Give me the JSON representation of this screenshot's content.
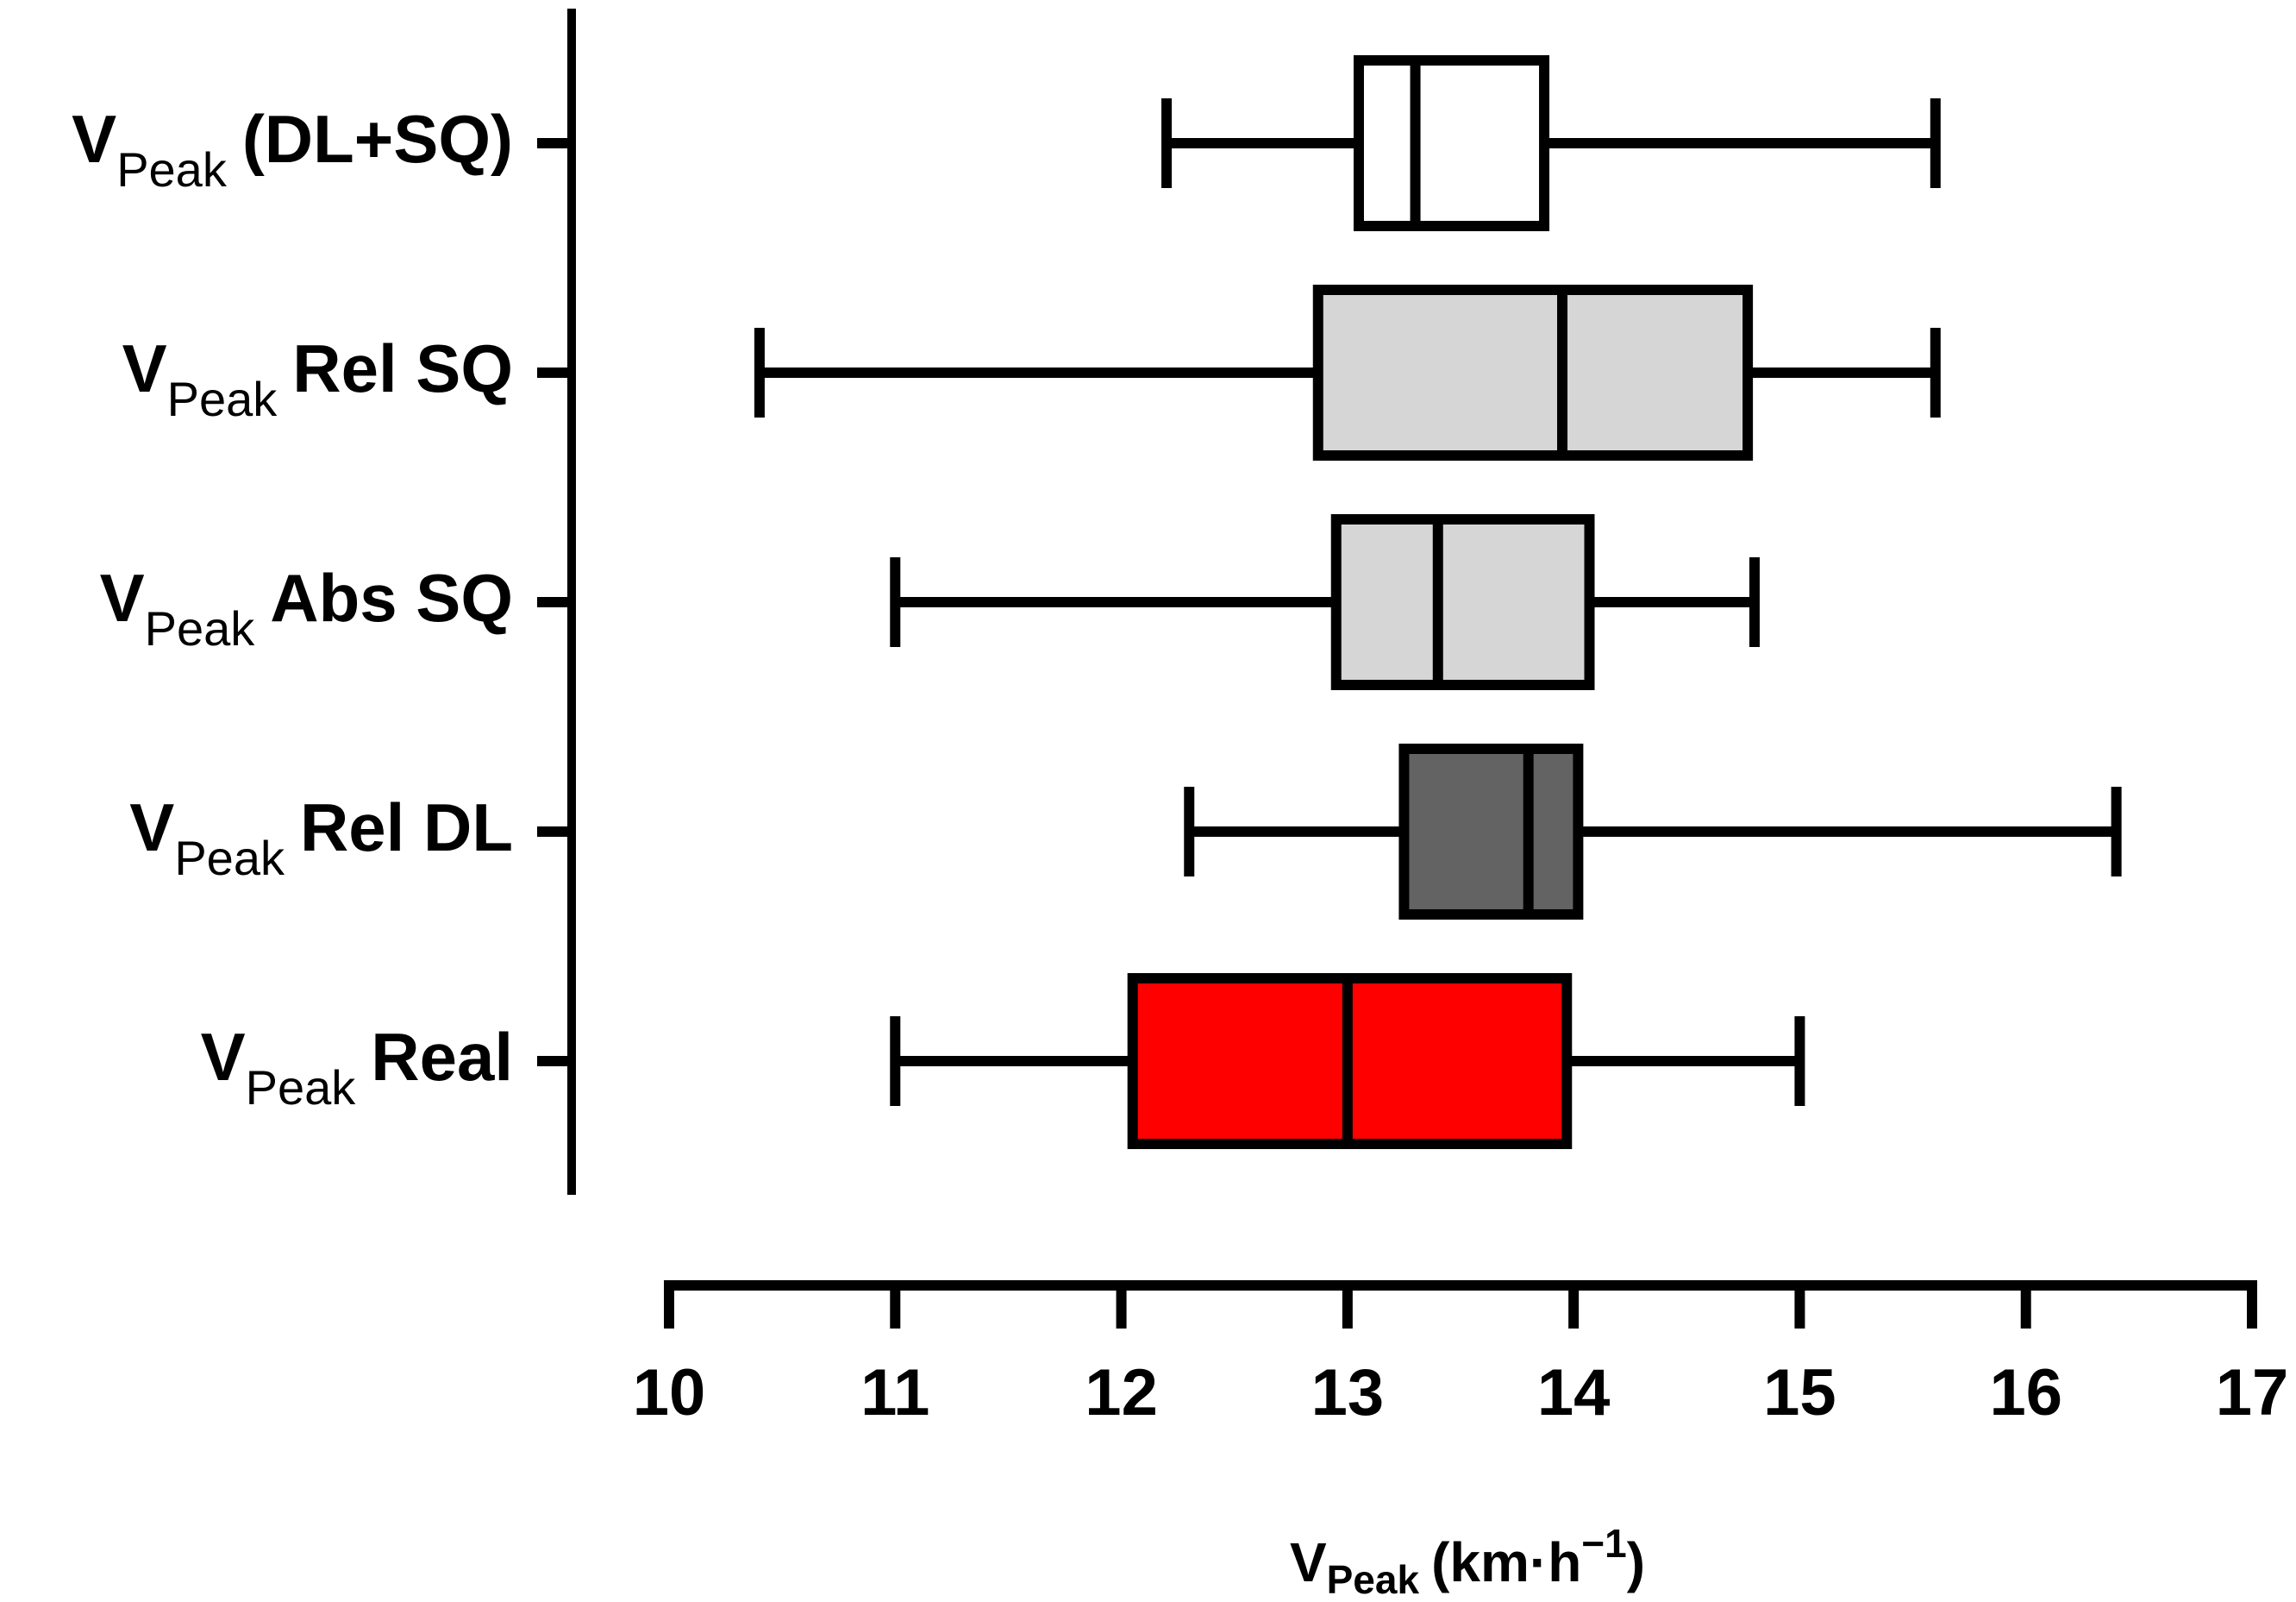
{
  "chart_data": {
    "type": "boxplot",
    "orientation": "horizontal",
    "title": "",
    "xlabel": {
      "main": "V",
      "sub": "Peak",
      "unit": "(km·h",
      "exp": "−1",
      "close": ")"
    },
    "xlim": [
      10,
      17
    ],
    "xticks": [
      "10",
      "11",
      "12",
      "13",
      "14",
      "15",
      "16",
      "17"
    ],
    "categories": [
      {
        "label": {
          "main": "V",
          "sub": "Peak",
          "suffix": "(DL+SQ)"
        },
        "min": 12.2,
        "q1": 13.05,
        "median": 13.3,
        "q3": 13.87,
        "max": 15.6,
        "color": "#ffffff"
      },
      {
        "label": {
          "main": "V",
          "sub": "Peak",
          "suffix": "Rel SQ"
        },
        "min": 10.4,
        "q1": 12.87,
        "median": 13.95,
        "q3": 14.77,
        "max": 15.6,
        "color": "#d6d6d6"
      },
      {
        "label": {
          "main": "V",
          "sub": "Peak",
          "suffix": "Abs SQ"
        },
        "min": 11.0,
        "q1": 12.95,
        "median": 13.4,
        "q3": 14.07,
        "max": 14.8,
        "color": "#d6d6d6"
      },
      {
        "label": {
          "main": "V",
          "sub": "Peak",
          "suffix": "Rel DL"
        },
        "min": 12.3,
        "q1": 13.25,
        "median": 13.8,
        "q3": 14.02,
        "max": 16.4,
        "color": "#636363"
      },
      {
        "label": {
          "main": "V",
          "sub": "Peak",
          "suffix": "Real"
        },
        "min": 11.0,
        "q1": 12.05,
        "median": 13.0,
        "q3": 13.97,
        "max": 15.0,
        "color": "#ff0000"
      }
    ]
  }
}
